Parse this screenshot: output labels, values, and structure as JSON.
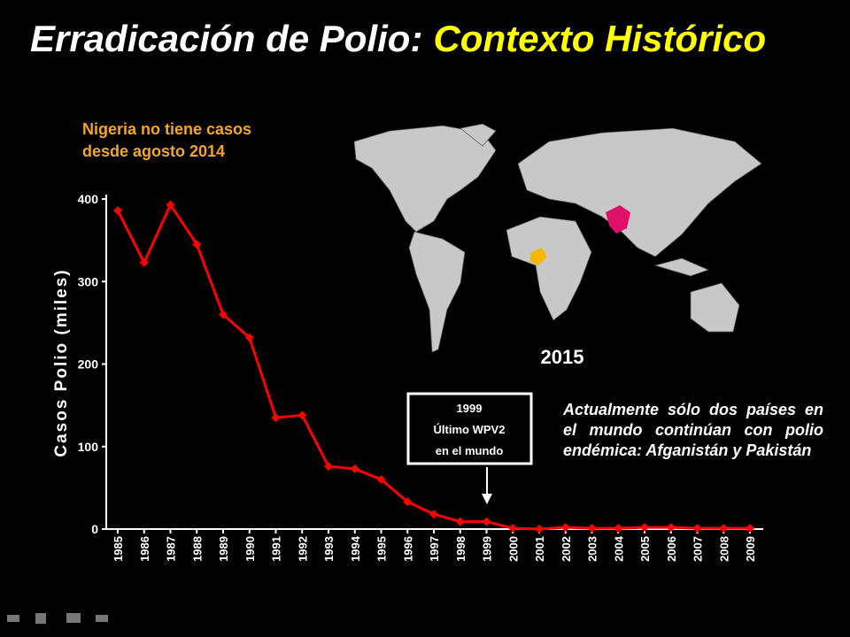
{
  "chart_data": {
    "type": "line",
    "title": [
      "Erradicación de Polio:",
      "Contexto Histórico"
    ],
    "y_label": "Casos Polio (miles)",
    "categories": [
      "1985",
      "1986",
      "1987",
      "1988",
      "1989",
      "1990",
      "1991",
      "1992",
      "1993",
      "1994",
      "1995",
      "1996",
      "1997",
      "1998",
      "1999",
      "2000",
      "2001",
      "2002",
      "2003",
      "2004",
      "2005",
      "2006",
      "2007",
      "2008",
      "2009"
    ],
    "values": [
      386,
      323,
      393,
      345,
      260,
      232,
      135,
      138,
      76,
      73,
      60,
      33,
      18,
      9,
      9,
      1,
      0,
      2,
      1,
      1,
      2,
      2,
      1,
      1,
      1
    ],
    "color": "#ff0000",
    "ylim": [
      0,
      400
    ],
    "yticks": [
      0,
      100,
      200,
      300,
      400
    ],
    "annotations": {
      "nigeria": [
        "Nigeria no tiene casos",
        "desde agosto 2014"
      ],
      "box": [
        "1999",
        "Último WPV2",
        "en el mundo"
      ],
      "endemic": "Actualmente sólo dos países en el mundo continúan con polio endémica: Afganistán y Pakistán",
      "map_year": "2015"
    }
  }
}
